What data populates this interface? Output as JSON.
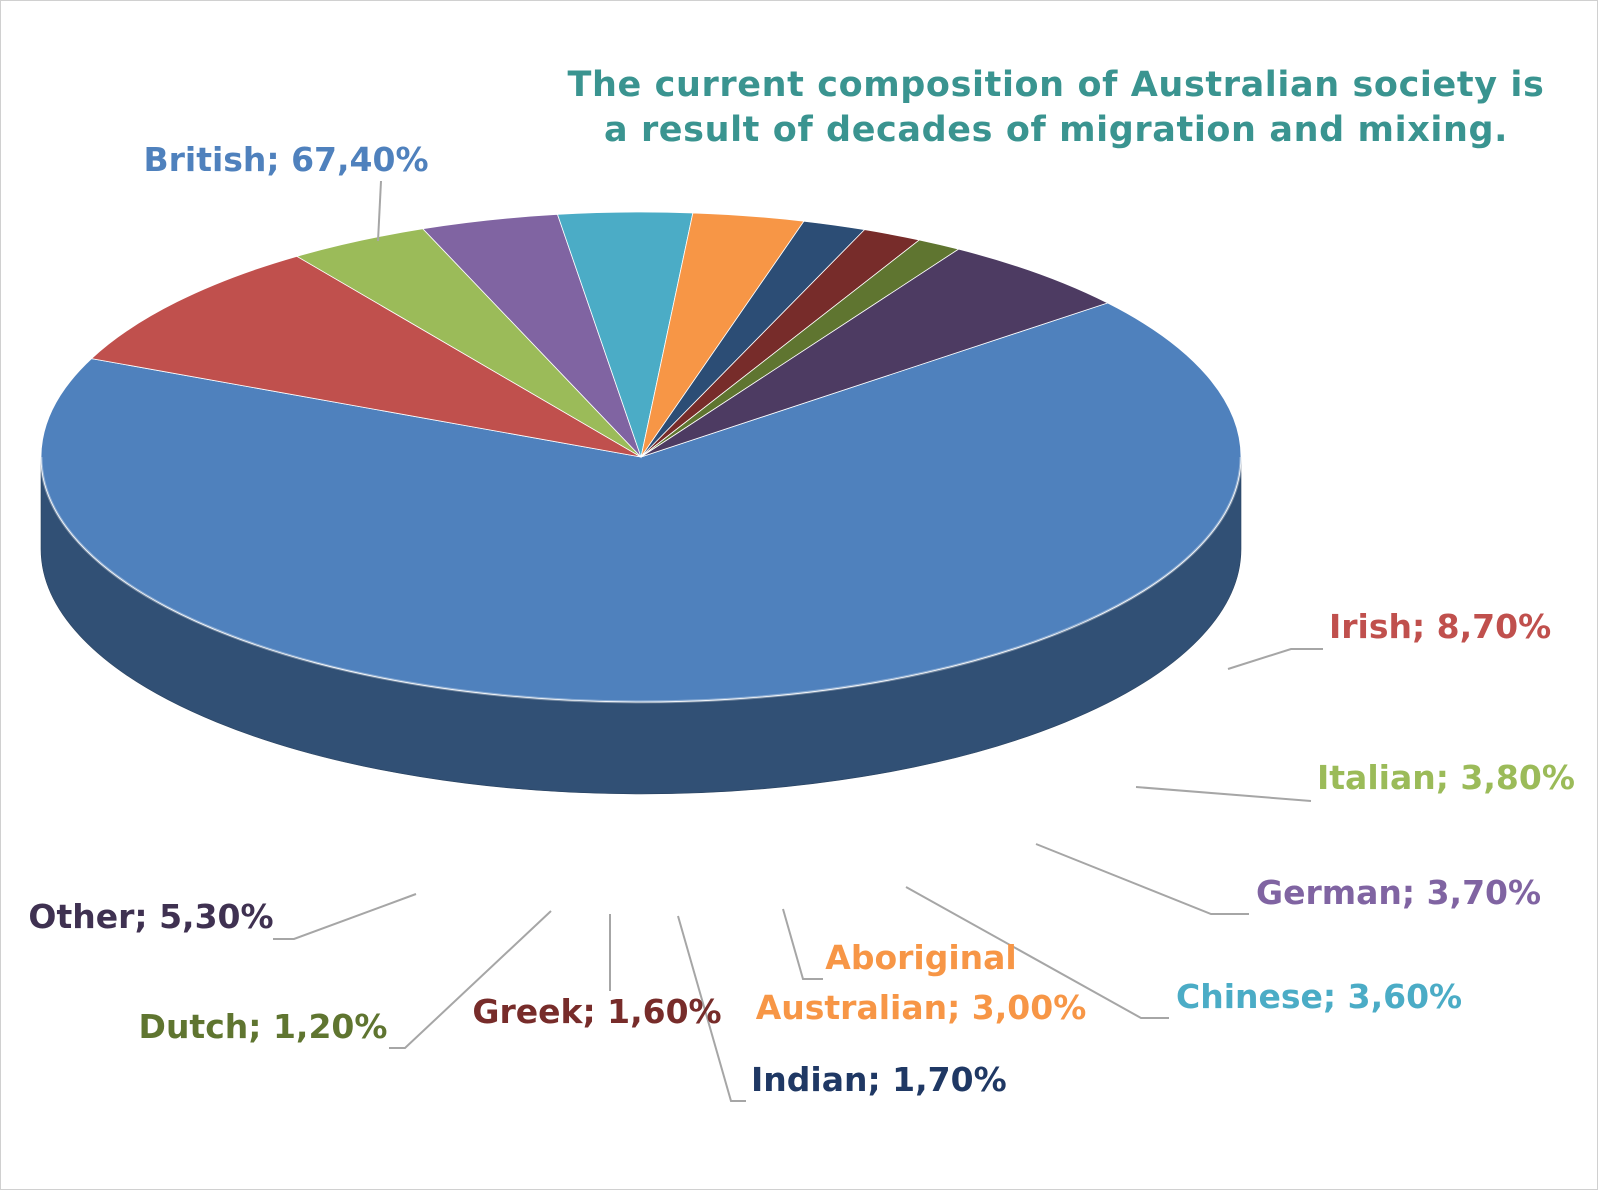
{
  "chart_data": {
    "type": "pie",
    "title_lines": [
      "The current composition of Australian society is",
      "a result of decades of migration and mixing."
    ],
    "slices": [
      {
        "label": "British",
        "value": 67.4,
        "display": "British; 67,40%",
        "color": "#4f81bd"
      },
      {
        "label": "Irish",
        "value": 8.7,
        "display": "Irish; 8,70%",
        "color": "#c0504d"
      },
      {
        "label": "Italian",
        "value": 3.8,
        "display": "Italian; 3,80%",
        "color": "#9bbb59"
      },
      {
        "label": "German",
        "value": 3.7,
        "display": "German; 3,70%",
        "color": "#8064a2"
      },
      {
        "label": "Chinese",
        "value": 3.6,
        "display": "Chinese; 3,60%",
        "color": "#4bacc6"
      },
      {
        "label": "Aboriginal Australian",
        "value": 3.0,
        "display_lines": [
          "Aboriginal",
          "Australian; 3,00%"
        ],
        "color": "#f79646"
      },
      {
        "label": "Indian",
        "value": 1.7,
        "display": "Indian; 1,70%",
        "color": "#2c4d75"
      },
      {
        "label": "Greek",
        "value": 1.6,
        "display": "Greek; 1,60%",
        "color": "#772c2a"
      },
      {
        "label": "Dutch",
        "value": 1.2,
        "display": "Dutch; 1,20%",
        "color": "#5f7530"
      },
      {
        "label": "Other",
        "value": 5.3,
        "display": "Other; 5,30%",
        "color": "#4d3b62"
      }
    ],
    "label_colors": {
      "British": "#4f81bd",
      "Irish": "#c0504d",
      "Italian": "#9bbb59",
      "German": "#8064a2",
      "Chinese": "#4bacc6",
      "Aboriginal Australian": "#f79646",
      "Indian": "#1f3864",
      "Greek": "#772c2a",
      "Dutch": "#5f7530",
      "Other": "#3f3151"
    },
    "style": "3d-pie",
    "legend": "none",
    "data_labels": "category-and-value"
  }
}
